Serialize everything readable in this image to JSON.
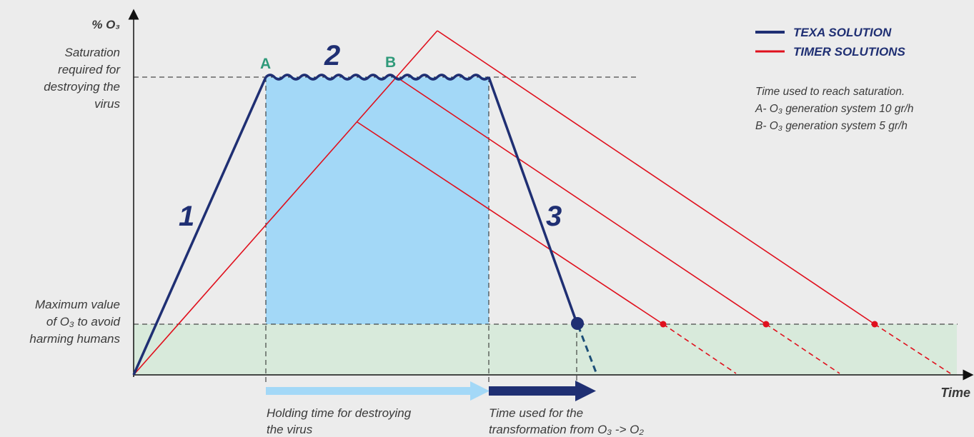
{
  "colors": {
    "texa": "#1f2f73",
    "timer": "#e0101d",
    "holding_fill": "#a3d8f7",
    "safe_fill": "#d8eadb",
    "point_label": "#2f9a7a",
    "holding_arrow": "#a3d8f7",
    "transform_arrow": "#1f2f73"
  },
  "axes": {
    "y_label": "% O₃",
    "x_label": "Time"
  },
  "levels": {
    "saturation": [
      "Saturation",
      "required for",
      "destroying the",
      "virus"
    ],
    "max_safe": [
      "Maximum value",
      "of O₃ to avoid",
      "harming humans"
    ]
  },
  "points": {
    "a": "A",
    "b": "B"
  },
  "phases": {
    "one": "1",
    "two": "2",
    "three": "3"
  },
  "legend": {
    "texa": "TEXA SOLUTION",
    "timer": "TIMER SOLUTIONS"
  },
  "note": {
    "title": "Time used to reach saturation.",
    "a": "A- O₃  generation system 10 gr/h",
    "b": "B- O₃ generation system 5 gr/h"
  },
  "arrows": {
    "holding": [
      "Holding time for destroying",
      "the virus"
    ],
    "transform": [
      "Time used for the",
      "transformation from O₃ -> O₂"
    ]
  }
}
